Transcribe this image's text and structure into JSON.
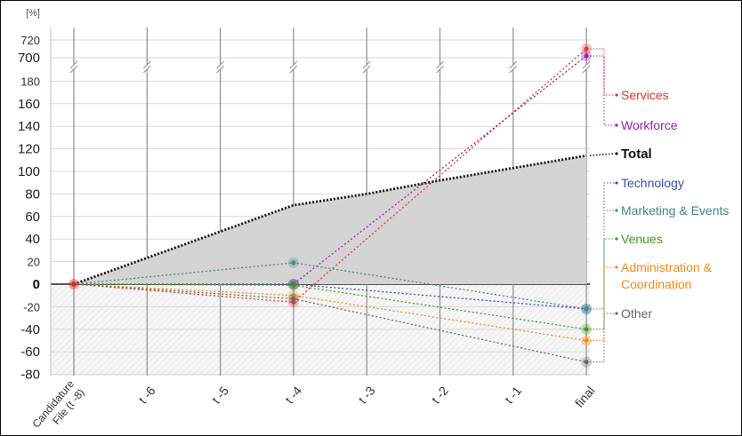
{
  "chart_data": {
    "type": "line",
    "unit_label": "[%]",
    "categories": [
      "Candidature File (t -8)",
      "t -6",
      "t -5",
      "t -4",
      "t -3",
      "t -2",
      "t -1",
      "final"
    ],
    "x_tick_labels": [
      [
        "Candidature",
        "File (t -8)"
      ],
      [
        "t -6"
      ],
      [
        "t -5"
      ],
      [
        "t -4"
      ],
      [
        "t -3"
      ],
      [
        "t -2"
      ],
      [
        "t -1"
      ],
      [
        "final"
      ]
    ],
    "y_axis_segments": [
      {
        "ticks": [
          -80,
          -60,
          -40,
          -20,
          0,
          20,
          40,
          60,
          80,
          100,
          120,
          140,
          160,
          180
        ],
        "range": [
          -80,
          190
        ]
      },
      {
        "ticks": [
          700,
          720
        ],
        "range": [
          695,
          725
        ]
      }
    ],
    "y_break": [
      190,
      695
    ],
    "grid": true,
    "legend_position": "right",
    "series": [
      {
        "name": "Services",
        "color": "#e3342f",
        "points": [
          [
            0,
            0
          ],
          [
            3,
            -16
          ],
          [
            7,
            710
          ]
        ]
      },
      {
        "name": "Workforce",
        "color": "#9b1fa3",
        "points": [
          [
            0,
            0
          ],
          [
            3,
            0
          ],
          [
            7,
            702
          ]
        ]
      },
      {
        "name": "Total",
        "color": "#111111",
        "points": [
          [
            0,
            0
          ],
          [
            3,
            70
          ],
          [
            4,
            80
          ],
          [
            5,
            92
          ],
          [
            6,
            103
          ],
          [
            7,
            114
          ]
        ]
      },
      {
        "name": "Technology",
        "color": "#3550b8",
        "points": [
          [
            0,
            0
          ],
          [
            3,
            0
          ],
          [
            7,
            -22
          ]
        ]
      },
      {
        "name": "Marketing & Events",
        "color": "#3e8a80",
        "points": [
          [
            0,
            0
          ],
          [
            3,
            19
          ],
          [
            7,
            -22
          ]
        ]
      },
      {
        "name": "Venues",
        "color": "#3f9a1c",
        "points": [
          [
            0,
            0
          ],
          [
            3,
            -1
          ],
          [
            7,
            -40
          ]
        ]
      },
      {
        "name": "Administration & Coordination",
        "color": "#f08a1c",
        "points": [
          [
            0,
            0
          ],
          [
            3,
            -10
          ],
          [
            7,
            -50
          ]
        ]
      },
      {
        "name": "Other",
        "color": "#666666",
        "points": [
          [
            0,
            0
          ],
          [
            3,
            -13
          ],
          [
            7,
            -69
          ]
        ]
      }
    ],
    "legend": [
      {
        "lines": [
          "Services"
        ],
        "color": "#e3342f",
        "series": "Services",
        "anchor_value": 710
      },
      {
        "lines": [
          "Workforce"
        ],
        "color": "#9b1fa3",
        "series": "Workforce",
        "anchor_value": 702
      },
      {
        "lines": [
          "Total"
        ],
        "color": "#111111",
        "series": "Total",
        "anchor_value": 114
      },
      {
        "lines": [
          "Technology"
        ],
        "color": "#3550b8",
        "series": "Technology",
        "anchor_value": -22
      },
      {
        "lines": [
          "Marketing & Events"
        ],
        "color": "#3e8a80",
        "series": "Marketing & Events",
        "anchor_value": -22
      },
      {
        "lines": [
          "Venues"
        ],
        "color": "#3f9a1c",
        "series": "Venues",
        "anchor_value": -40
      },
      {
        "lines": [
          "Administration &",
          "Coordination"
        ],
        "color": "#f08a1c",
        "series": "Administration & Coordination",
        "anchor_value": -50
      },
      {
        "lines": [
          "Other"
        ],
        "color": "#666666",
        "series": "Other",
        "anchor_value": -69
      }
    ]
  }
}
